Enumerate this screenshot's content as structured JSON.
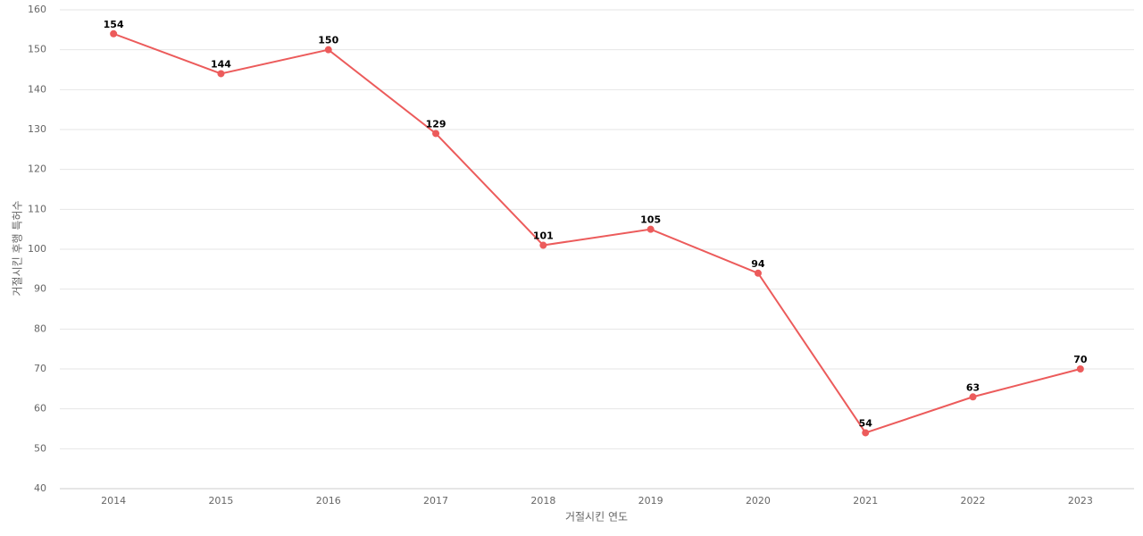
{
  "chart_data": {
    "type": "line",
    "x_label": "거절시킨 연도",
    "y_label": "거절시킨 후행 특허수",
    "categories": [
      "2014",
      "2015",
      "2016",
      "2017",
      "2018",
      "2019",
      "2020",
      "2021",
      "2022",
      "2023"
    ],
    "series": [
      {
        "name": "후행 특허수",
        "color": "#ec5b5b",
        "values": [
          154,
          144,
          150,
          129,
          101,
          105,
          94,
          54,
          63,
          70
        ]
      }
    ],
    "ylim": [
      40,
      160
    ],
    "yticks": [
      40,
      50,
      60,
      70,
      80,
      90,
      100,
      110,
      120,
      130,
      140,
      150,
      160
    ],
    "grid": true
  }
}
